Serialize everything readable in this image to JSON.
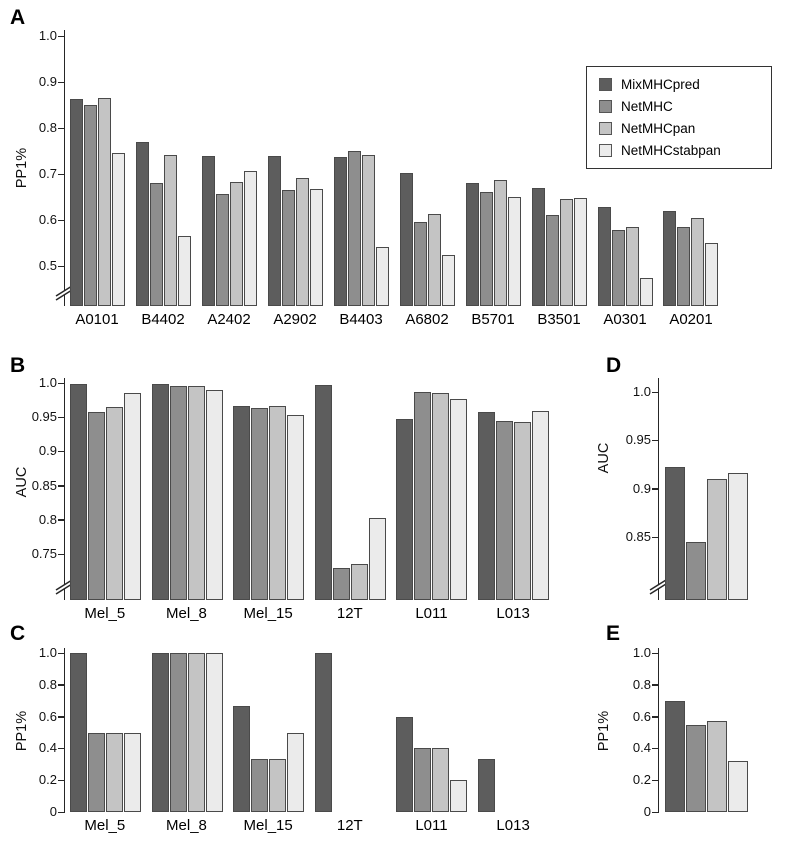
{
  "series_colors": [
    "#5d5d5d",
    "#8e8e8e",
    "#c4c4c4",
    "#ebebeb"
  ],
  "legend": {
    "items": [
      "MixMHCpred",
      "NetMHC",
      "NetMHCpan",
      "NetMHCstabpan"
    ]
  },
  "chart_data": [
    {
      "panel": "A",
      "type": "bar",
      "title": "",
      "ylabel": "PP1%",
      "xlabel": "",
      "categories": [
        "A0101",
        "B4402",
        "A2402",
        "A2902",
        "B4403",
        "A6802",
        "B5701",
        "B3501",
        "A0301",
        "A0201"
      ],
      "series": [
        {
          "name": "MixMHCpred",
          "values": [
            0.862,
            0.77,
            0.74,
            0.74,
            0.736,
            0.702,
            0.681,
            0.67,
            0.628,
            0.62
          ]
        },
        {
          "name": "NetMHC",
          "values": [
            0.85,
            0.68,
            0.657,
            0.666,
            0.75,
            0.595,
            0.66,
            0.61,
            0.579,
            0.585
          ]
        },
        {
          "name": "NetMHCpan",
          "values": [
            0.865,
            0.742,
            0.682,
            0.692,
            0.742,
            0.614,
            0.686,
            0.646,
            0.585,
            0.605
          ]
        },
        {
          "name": "NetMHCstabpan",
          "values": [
            0.745,
            0.565,
            0.706,
            0.668,
            0.541,
            0.524,
            0.651,
            0.647,
            0.474,
            0.549
          ]
        }
      ],
      "ylim": [
        0.5,
        1.0
      ],
      "yticks": [
        "1.0",
        "0.9",
        "0.8",
        "0.7",
        "0.6",
        "0.5"
      ],
      "ytick_values": [
        1.0,
        0.9,
        0.8,
        0.7,
        0.6,
        0.5
      ],
      "axis_break": true,
      "grid": false,
      "legend_position": "top-right"
    },
    {
      "panel": "B",
      "type": "bar",
      "title": "",
      "ylabel": "AUC",
      "xlabel": "",
      "categories": [
        "Mel_5",
        "Mel_8",
        "Mel_15",
        "12T",
        "L011",
        "L013"
      ],
      "series": [
        {
          "name": "MixMHCpred",
          "values": [
            0.998,
            0.998,
            0.966,
            0.997,
            0.948,
            0.957
          ]
        },
        {
          "name": "NetMHC",
          "values": [
            0.958,
            0.995,
            0.963,
            0.73,
            0.987,
            0.945
          ]
        },
        {
          "name": "NetMHCpan",
          "values": [
            0.965,
            0.995,
            0.966,
            0.735,
            0.985,
            0.943
          ]
        },
        {
          "name": "NetMHCstabpan",
          "values": [
            0.985,
            0.99,
            0.953,
            0.802,
            0.976,
            0.959
          ]
        }
      ],
      "ylim": [
        0.75,
        1.0
      ],
      "yticks": [
        "1.0",
        "0.95",
        "0.9",
        "0.85",
        "0.8",
        "0.75"
      ],
      "ytick_values": [
        1.0,
        0.95,
        0.9,
        0.85,
        0.8,
        0.75
      ],
      "axis_break": true,
      "grid": false,
      "legend_position": "none"
    },
    {
      "panel": "C",
      "type": "bar",
      "title": "",
      "ylabel": "PP1%",
      "xlabel": "",
      "categories": [
        "Mel_5",
        "Mel_8",
        "Mel_15",
        "12T",
        "L011",
        "L013"
      ],
      "series": [
        {
          "name": "MixMHCpred",
          "values": [
            1.0,
            1.0,
            0.667,
            1.0,
            0.6,
            0.333
          ]
        },
        {
          "name": "NetMHC",
          "values": [
            0.5,
            1.0,
            0.333,
            0,
            0.4,
            0
          ]
        },
        {
          "name": "NetMHCpan",
          "values": [
            0.5,
            1.0,
            0.333,
            0,
            0.4,
            0
          ]
        },
        {
          "name": "NetMHCstabpan",
          "values": [
            0.5,
            1.0,
            0.5,
            0,
            0.2,
            0
          ]
        }
      ],
      "ylim": [
        0,
        1.0
      ],
      "yticks": [
        "1.0",
        "0.8",
        "0.6",
        "0.4",
        "0.2",
        "0"
      ],
      "ytick_values": [
        1.0,
        0.8,
        0.6,
        0.4,
        0.2,
        0
      ],
      "axis_break": false,
      "grid": false,
      "legend_position": "none"
    },
    {
      "panel": "D",
      "type": "bar",
      "title": "",
      "ylabel": "AUC",
      "xlabel": "",
      "categories": [],
      "series": [
        {
          "name": "MixMHCpred",
          "values": [
            0.922
          ]
        },
        {
          "name": "NetMHC",
          "values": [
            0.845
          ]
        },
        {
          "name": "NetMHCpan",
          "values": [
            0.91
          ]
        },
        {
          "name": "NetMHCstabpan",
          "values": [
            0.916
          ]
        }
      ],
      "ylim": [
        0.85,
        1.0
      ],
      "yticks": [
        "1.0",
        "0.95",
        "0.9",
        "0.85"
      ],
      "ytick_values": [
        1.0,
        0.95,
        0.9,
        0.85
      ],
      "axis_break": true,
      "grid": false,
      "legend_position": "none"
    },
    {
      "panel": "E",
      "type": "bar",
      "title": "",
      "ylabel": "PP1%",
      "xlabel": "",
      "categories": [],
      "series": [
        {
          "name": "MixMHCpred",
          "values": [
            0.7
          ]
        },
        {
          "name": "NetMHC",
          "values": [
            0.55
          ]
        },
        {
          "name": "NetMHCpan",
          "values": [
            0.57
          ]
        },
        {
          "name": "NetMHCstabpan",
          "values": [
            0.32
          ]
        }
      ],
      "ylim": [
        0,
        1.0
      ],
      "yticks": [
        "1.0",
        "0.8",
        "0.6",
        "0.4",
        "0.2",
        "0"
      ],
      "ytick_values": [
        1.0,
        0.8,
        0.6,
        0.4,
        0.2,
        0
      ],
      "axis_break": false,
      "grid": false,
      "legend_position": "none"
    }
  ]
}
